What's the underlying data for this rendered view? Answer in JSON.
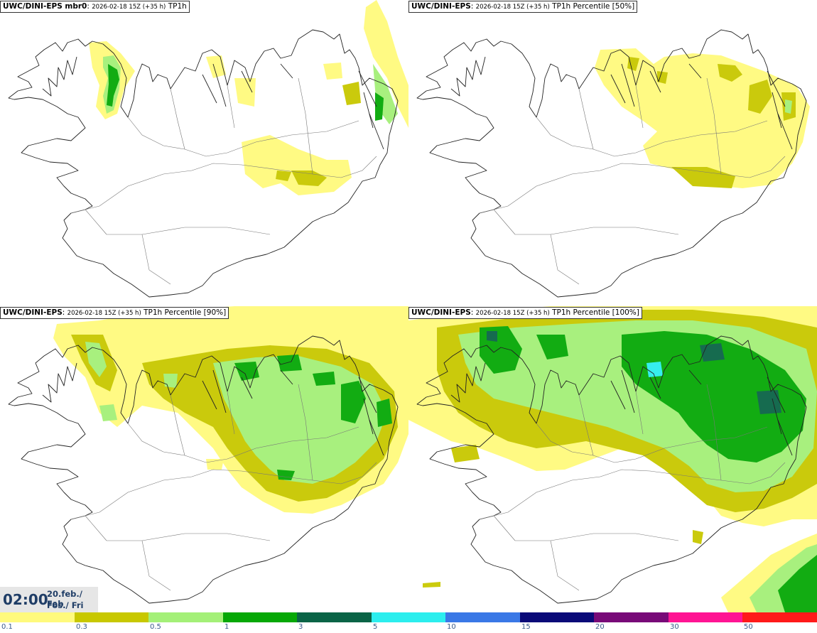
{
  "panels": [
    {
      "model": "UWC/DINI-EPS mbr0",
      "run": "2026-02-18 15Z (+35 h)",
      "field": "TP1h"
    },
    {
      "model": "UWC/DINI-EPS",
      "run": "2026-02-18 15Z (+35 h)",
      "field": "TP1h Percentile [50%]"
    },
    {
      "model": "UWC/DINI-EPS",
      "run": "2026-02-18 15Z (+35 h)",
      "field": "TP1h Percentile [90%]"
    },
    {
      "model": "UWC/DINI-EPS",
      "run": "2026-02-18 15Z (+35 h)",
      "field": "TP1h Percentile [100%]"
    }
  ],
  "valid_time": {
    "time": "02:00",
    "date_line1": "20.feb./ Feb",
    "date_line2": "Fös./ Fri"
  },
  "legend": {
    "labels": [
      "0.1",
      "0.3",
      "0.5",
      "1",
      "3",
      "5",
      "10",
      "15",
      "20",
      "30",
      "50"
    ],
    "colors": [
      "#fffa7d",
      "#c8c800",
      "#a4f078",
      "#06a806",
      "#0a6446",
      "#2ceeee",
      "#3a78e6",
      "#0a0a78",
      "#780a78",
      "#ff1493",
      "#ff1a1a"
    ]
  },
  "colors": {
    "coast": "#222222",
    "roads": "#777777",
    "time_text": "#1f3d66",
    "tick_text": "#3a5a8a"
  }
}
